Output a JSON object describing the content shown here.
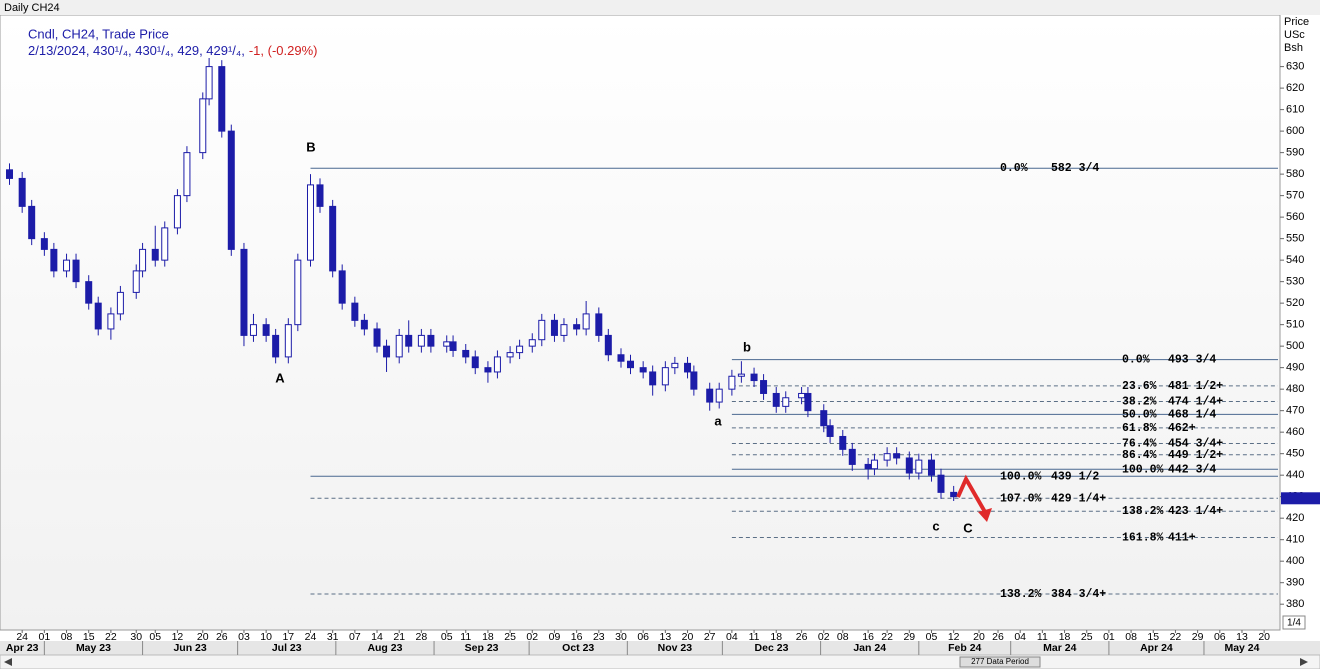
{
  "chart_label": "Daily CH24",
  "legend": {
    "line1": "Cndl, CH24, Trade Price",
    "line2": "2/13/2024, 430¹/₄, 430¹/₄, 429, 429¹/₄,",
    "change": "-1, (-0.29%)"
  },
  "y_axis_label": [
    "Price",
    "USc",
    "Bsh"
  ],
  "footer": "277 Data Period",
  "corner": "1/4",
  "chart_data": {
    "type": "candlestick",
    "up_color": "#ffffff",
    "down_color": "#1c1ca8",
    "outline": "#1c1ca8",
    "xlim": [
      "2023-04-17",
      "2024-05-25"
    ],
    "ylim": [
      368,
      654
    ],
    "yticks": [
      380,
      390,
      400,
      410,
      420,
      430,
      440,
      450,
      460,
      470,
      480,
      490,
      500,
      510,
      520,
      530,
      540,
      550,
      560,
      570,
      580,
      590,
      600,
      610,
      620,
      630
    ],
    "x": [
      "2023-04-20",
      "2023-04-24",
      "2023-04-27",
      "2023-05-01",
      "2023-05-04",
      "2023-05-08",
      "2023-05-11",
      "2023-05-15",
      "2023-05-18",
      "2023-05-22",
      "2023-05-25",
      "2023-05-30",
      "2023-06-01",
      "2023-06-05",
      "2023-06-08",
      "2023-06-12",
      "2023-06-15",
      "2023-06-20",
      "2023-06-22",
      "2023-06-26",
      "2023-06-29",
      "2023-07-03",
      "2023-07-06",
      "2023-07-10",
      "2023-07-13",
      "2023-07-17",
      "2023-07-20",
      "2023-07-24",
      "2023-07-27",
      "2023-07-31",
      "2023-08-03",
      "2023-08-07",
      "2023-08-10",
      "2023-08-14",
      "2023-08-17",
      "2023-08-21",
      "2023-08-24",
      "2023-08-28",
      "2023-08-31",
      "2023-09-05",
      "2023-09-07",
      "2023-09-11",
      "2023-09-14",
      "2023-09-18",
      "2023-09-21",
      "2023-09-25",
      "2023-09-28",
      "2023-10-02",
      "2023-10-05",
      "2023-10-09",
      "2023-10-12",
      "2023-10-16",
      "2023-10-19",
      "2023-10-23",
      "2023-10-26",
      "2023-10-30",
      "2023-11-02",
      "2023-11-06",
      "2023-11-09",
      "2023-11-13",
      "2023-11-16",
      "2023-11-20",
      "2023-11-22",
      "2023-11-27",
      "2023-11-30",
      "2023-12-04",
      "2023-12-07",
      "2023-12-11",
      "2023-12-14",
      "2023-12-18",
      "2023-12-21",
      "2023-12-26",
      "2023-12-28",
      "2024-01-02",
      "2024-01-04",
      "2024-01-08",
      "2024-01-11",
      "2024-01-16",
      "2024-01-18",
      "2024-01-22",
      "2024-01-25",
      "2024-01-29",
      "2024-02-01",
      "2024-02-05",
      "2024-02-08",
      "2024-02-12"
    ],
    "ohlc": [
      [
        582,
        585,
        575,
        578
      ],
      [
        578,
        581,
        562,
        565
      ],
      [
        565,
        568,
        547,
        550
      ],
      [
        550,
        553,
        542,
        545
      ],
      [
        545,
        548,
        532,
        535
      ],
      [
        535,
        543,
        532,
        540
      ],
      [
        540,
        543,
        527,
        530
      ],
      [
        530,
        533,
        517,
        520
      ],
      [
        520,
        523,
        505,
        508
      ],
      [
        508,
        518,
        503,
        515
      ],
      [
        515,
        528,
        512,
        525
      ],
      [
        525,
        538,
        522,
        535
      ],
      [
        535,
        548,
        532,
        545
      ],
      [
        545,
        556,
        537,
        540
      ],
      [
        540,
        558,
        537,
        555
      ],
      [
        555,
        573,
        552,
        570
      ],
      [
        570,
        593,
        567,
        590
      ],
      [
        590,
        618,
        587,
        615
      ],
      [
        615,
        634,
        612,
        630
      ],
      [
        630,
        633,
        597,
        600
      ],
      [
        600,
        603,
        542,
        545
      ],
      [
        545,
        548,
        500,
        505
      ],
      [
        505,
        515,
        502,
        510
      ],
      [
        510,
        513,
        502,
        505
      ],
      [
        505,
        508,
        492,
        495
      ],
      [
        495,
        513,
        492,
        510
      ],
      [
        510,
        543,
        507,
        540
      ],
      [
        540,
        580,
        537,
        575
      ],
      [
        575,
        578,
        562,
        565
      ],
      [
        565,
        568,
        532,
        535
      ],
      [
        535,
        538,
        517,
        520
      ],
      [
        520,
        523,
        509,
        512
      ],
      [
        512,
        515,
        505,
        508
      ],
      [
        508,
        511,
        497,
        500
      ],
      [
        500,
        503,
        488,
        495
      ],
      [
        495,
        508,
        492,
        505
      ],
      [
        505,
        512,
        497,
        500
      ],
      [
        500,
        508,
        497,
        505
      ],
      [
        505,
        508,
        497,
        500
      ],
      [
        500,
        505,
        497,
        502
      ],
      [
        502,
        505,
        495,
        498
      ],
      [
        498,
        501,
        492,
        495
      ],
      [
        495,
        498,
        487,
        490
      ],
      [
        490,
        493,
        483,
        488
      ],
      [
        488,
        498,
        485,
        495
      ],
      [
        495,
        500,
        492,
        497
      ],
      [
        497,
        503,
        494,
        500
      ],
      [
        500,
        506,
        497,
        503
      ],
      [
        503,
        515,
        500,
        512
      ],
      [
        512,
        515,
        502,
        505
      ],
      [
        505,
        513,
        502,
        510
      ],
      [
        510,
        513,
        505,
        508
      ],
      [
        508,
        521,
        505,
        515
      ],
      [
        515,
        518,
        502,
        505
      ],
      [
        505,
        508,
        493,
        496
      ],
      [
        496,
        499,
        490,
        493
      ],
      [
        493,
        496,
        487,
        490
      ],
      [
        490,
        493,
        485,
        488
      ],
      [
        488,
        491,
        477,
        482
      ],
      [
        482,
        493,
        479,
        490
      ],
      [
        490,
        495,
        487,
        492
      ],
      [
        492,
        495,
        485,
        488
      ],
      [
        488,
        491,
        477,
        480
      ],
      [
        480,
        483,
        470,
        474
      ],
      [
        474,
        483,
        471,
        480
      ],
      [
        480,
        489,
        477,
        486
      ],
      [
        486,
        493,
        483,
        487
      ],
      [
        487,
        490,
        481,
        484
      ],
      [
        484,
        487,
        475,
        478
      ],
      [
        478,
        481,
        469,
        472
      ],
      [
        472,
        479,
        469,
        476
      ],
      [
        476,
        481,
        473,
        478
      ],
      [
        478,
        481,
        467,
        470
      ],
      [
        470,
        473,
        460,
        463
      ],
      [
        463,
        466,
        455,
        458
      ],
      [
        458,
        461,
        449,
        452
      ],
      [
        452,
        455,
        442,
        445
      ],
      [
        445,
        448,
        438,
        443
      ],
      [
        443,
        450,
        440,
        447
      ],
      [
        447,
        453,
        444,
        450
      ],
      [
        450,
        453,
        445,
        448
      ],
      [
        448,
        451,
        438,
        441
      ],
      [
        441,
        450,
        438,
        447
      ],
      [
        447,
        450,
        437,
        440
      ],
      [
        440,
        443,
        429,
        432
      ],
      [
        432,
        435,
        428,
        430
      ]
    ],
    "last": 429.25,
    "last_color": "#1c1ca8",
    "levels": [
      {
        "pct": "0.0%",
        "label": "582 3/4",
        "value": 582.75,
        "start": "2023-07-24",
        "style": "solid",
        "color": "#7a1414"
      },
      {
        "pct": "0.0%",
        "label": "493 3/4",
        "value": 493.75,
        "start": "2023-12-04",
        "style": "solid",
        "color": "#000000"
      },
      {
        "pct": "23.6%",
        "label": "481 1/2+",
        "value": 481.5,
        "start": "2023-12-04",
        "style": "dashed",
        "color": "#000000"
      },
      {
        "pct": "38.2%",
        "label": "474 1/4+",
        "value": 474.25,
        "start": "2023-12-04",
        "style": "dashed",
        "color": "#000000"
      },
      {
        "pct": "50.0%",
        "label": "468 1/4",
        "value": 468.25,
        "start": "2023-12-04",
        "style": "solid",
        "color": "#000000"
      },
      {
        "pct": "61.8%",
        "label": "462+",
        "value": 462,
        "start": "2023-12-04",
        "style": "dashed",
        "color": "#000000"
      },
      {
        "pct": "76.4%",
        "label": "454 3/4+",
        "value": 454.75,
        "start": "2023-12-04",
        "style": "dashed",
        "color": "#000000"
      },
      {
        "pct": "86.4%",
        "label": "449 1/2+",
        "value": 449.5,
        "start": "2023-12-04",
        "style": "dashed",
        "color": "#000000"
      },
      {
        "pct": "100.0%",
        "label": "442 3/4",
        "value": 442.75,
        "start": "2023-12-04",
        "style": "solid",
        "color": "#000000"
      },
      {
        "pct": "100.0%",
        "label": "439 1/2",
        "value": 439.5,
        "start": "2023-07-24",
        "style": "solid",
        "color": "#7a1414"
      },
      {
        "pct": "107.0%",
        "label": "429 1/4+",
        "value": 429.25,
        "start": "2023-07-24",
        "style": "dashed",
        "color": "#7a1414"
      },
      {
        "pct": "138.2%",
        "label": "423 1/4+",
        "value": 423.25,
        "start": "2023-12-04",
        "style": "dashed",
        "color": "#000000"
      },
      {
        "pct": "161.8%",
        "label": "411+",
        "value": 411,
        "start": "2023-12-04",
        "style": "dashed",
        "color": "#000000"
      },
      {
        "pct": "138.2%",
        "label": "384 3/4+",
        "value": 384.75,
        "start": "2023-07-24",
        "style": "dashed",
        "color": "#7a1414"
      }
    ],
    "waves": [
      "B",
      "A",
      "a",
      "b",
      "c",
      "C"
    ],
    "xticks": [
      {
        "value": "2023-04-24",
        "label": "24"
      },
      {
        "value": "2023-05-01",
        "label": "01"
      },
      {
        "value": "2023-05-08",
        "label": "08"
      },
      {
        "value": "2023-05-15",
        "label": "15"
      },
      {
        "value": "2023-05-22",
        "label": "22"
      },
      {
        "value": "2023-05-30",
        "label": "30"
      },
      {
        "value": "2023-06-05",
        "label": "05"
      },
      {
        "value": "2023-06-12",
        "label": "12"
      },
      {
        "value": "2023-06-20",
        "label": "20"
      },
      {
        "value": "2023-06-26",
        "label": "26"
      },
      {
        "value": "2023-07-03",
        "label": "03"
      },
      {
        "value": "2023-07-10",
        "label": "10"
      },
      {
        "value": "2023-07-17",
        "label": "17"
      },
      {
        "value": "2023-07-24",
        "label": "24"
      },
      {
        "value": "2023-07-31",
        "label": "31"
      },
      {
        "value": "2023-08-07",
        "label": "07"
      },
      {
        "value": "2023-08-14",
        "label": "14"
      },
      {
        "value": "2023-08-21",
        "label": "21"
      },
      {
        "value": "2023-08-28",
        "label": "28"
      },
      {
        "value": "2023-09-05",
        "label": "05"
      },
      {
        "value": "2023-09-11",
        "label": "11"
      },
      {
        "value": "2023-09-18",
        "label": "18"
      },
      {
        "value": "2023-09-25",
        "label": "25"
      },
      {
        "value": "2023-10-02",
        "label": "02"
      },
      {
        "value": "2023-10-09",
        "label": "09"
      },
      {
        "value": "2023-10-16",
        "label": "16"
      },
      {
        "value": "2023-10-23",
        "label": "23"
      },
      {
        "value": "2023-10-30",
        "label": "30"
      },
      {
        "value": "2023-11-06",
        "label": "06"
      },
      {
        "value": "2023-11-13",
        "label": "13"
      },
      {
        "value": "2023-11-20",
        "label": "20"
      },
      {
        "value": "2023-11-27",
        "label": "27"
      },
      {
        "value": "2023-12-04",
        "label": "04"
      },
      {
        "value": "2023-12-11",
        "label": "11"
      },
      {
        "value": "2023-12-18",
        "label": "18"
      },
      {
        "value": "2023-12-26",
        "label": "26"
      },
      {
        "value": "2024-01-02",
        "label": "02"
      },
      {
        "value": "2024-01-08",
        "label": "08"
      },
      {
        "value": "2024-01-16",
        "label": "16"
      },
      {
        "value": "2024-01-22",
        "label": "22"
      },
      {
        "value": "2024-01-29",
        "label": "29"
      },
      {
        "value": "2024-02-05",
        "label": "05"
      },
      {
        "value": "2024-02-12",
        "label": "12"
      },
      {
        "value": "2024-02-20",
        "label": "20"
      },
      {
        "value": "2024-02-26",
        "label": "26"
      },
      {
        "value": "2024-03-04",
        "label": "04"
      },
      {
        "value": "2024-03-11",
        "label": "11"
      },
      {
        "value": "2024-03-18",
        "label": "18"
      },
      {
        "value": "2024-03-25",
        "label": "25"
      },
      {
        "value": "2024-04-01",
        "label": "01"
      },
      {
        "value": "2024-04-08",
        "label": "08"
      },
      {
        "value": "2024-04-15",
        "label": "15"
      },
      {
        "value": "2024-04-22",
        "label": "22"
      },
      {
        "value": "2024-04-29",
        "label": "29"
      },
      {
        "value": "2024-05-06",
        "label": "06"
      },
      {
        "value": "2024-05-13",
        "label": "13"
      },
      {
        "value": "2024-05-20",
        "label": "20"
      }
    ],
    "months": [
      {
        "value": "2023-04-01",
        "label": "Apr 23"
      },
      {
        "value": "2023-05-01",
        "label": "May 23"
      },
      {
        "value": "2023-06-01",
        "label": "Jun 23"
      },
      {
        "value": "2023-07-01",
        "label": "Jul 23"
      },
      {
        "value": "2023-08-01",
        "label": "Aug 23"
      },
      {
        "value": "2023-09-01",
        "label": "Sep 23"
      },
      {
        "value": "2023-10-01",
        "label": "Oct 23"
      },
      {
        "value": "2023-11-01",
        "label": "Nov 23"
      },
      {
        "value": "2023-12-01",
        "label": "Dec 23"
      },
      {
        "value": "2024-01-01",
        "label": "Jan 24"
      },
      {
        "value": "2024-02-01",
        "label": "Feb 24"
      },
      {
        "value": "2024-03-01",
        "label": "Mar 24"
      },
      {
        "value": "2024-04-01",
        "label": "Apr 24"
      },
      {
        "value": "2024-05-01",
        "label": "May 24"
      }
    ]
  }
}
